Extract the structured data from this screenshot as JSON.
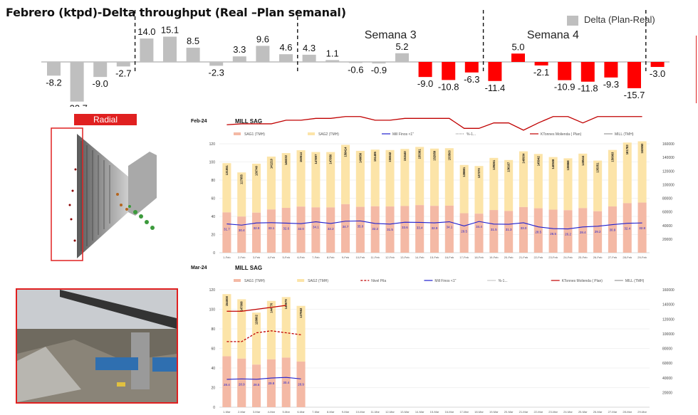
{
  "title": "Febrero (ktpd)-Delta throughput (Real –Plan semanal)",
  "legend_label": "Delta (Plan-Real)",
  "colors": {
    "positive": "#bfbfbf",
    "negative": "#ff0000",
    "accent": "#e02020"
  },
  "radial_label": "Radial",
  "chart_data": [
    {
      "type": "bar",
      "title": "Febrero (ktpd)-Delta throughput (Real –Plan semanal)",
      "legend": [
        "Delta (Plan-Real)"
      ],
      "values": [
        -8.2,
        -23.7,
        -9.0,
        -2.7,
        14.0,
        15.1,
        8.5,
        -2.3,
        3.3,
        9.6,
        4.6,
        4.3,
        1.1,
        -0.6,
        -0.9,
        5.2,
        -9.0,
        -10.8,
        -6.3,
        -11.4,
        5.0,
        -2.1,
        -10.9,
        -11.8,
        -9.3,
        -15.7,
        -3.0
      ],
      "red_start_index": 16,
      "week_labels": [
        "Semana 3",
        "Semana 4"
      ],
      "week_dividers_after_index": [
        3,
        10,
        18,
        25
      ]
    },
    {
      "type": "bar",
      "period": "Feb-24",
      "title": "MILL SAG",
      "legend": [
        "SAG1 (TMH)",
        "SAG2 (TMH)",
        "Mill Finos <1\"",
        "%-1...",
        "KTonnes Molienda ( Plan)",
        "MILL (TMH)"
      ],
      "categories": [
        "1-Feb",
        "2-Feb",
        "3-Feb",
        "4-Feb",
        "5-Feb",
        "6-Feb",
        "7-Feb",
        "8-Feb",
        "9-Feb",
        "10-Feb",
        "11-Feb",
        "12-Feb",
        "13-Feb",
        "14-Feb",
        "15-Feb",
        "16-Feb",
        "17-Feb",
        "18-Feb",
        "19-Feb",
        "20-Feb",
        "21-Feb",
        "22-Feb",
        "23-Feb",
        "24-Feb",
        "25-Feb",
        "26-Feb",
        "27-Feb",
        "28-Feb",
        "29-Feb"
      ],
      "mill_tmh": [
        131551,
        117955,
        130740,
        141210,
        146332,
        150514,
        147897,
        147850,
        158414,
        149656,
        151485,
        150842,
        152440,
        155381,
        152959,
        153503,
        128881,
        127370,
        139261,
        136167,
        148934,
        145042,
        140508,
        138668,
        145544,
        135351,
        150963,
        161783,
        163650
      ],
      "mill_finos": [
        31.7,
        30.4,
        32.8,
        33.1,
        32.6,
        32.0,
        34.1,
        32.2,
        34.7,
        35.0,
        32.2,
        31.5,
        33.6,
        33.4,
        32.9,
        34.1,
        29.5,
        34.4,
        31.5,
        31.3,
        33.0,
        28.5,
        26.5,
        26.2,
        28.4,
        29.2,
        30.9,
        32.4,
        32.8
      ],
      "ktonnes_plan": [
        141,
        142,
        142,
        142,
        146,
        146,
        148,
        148,
        150,
        150,
        146,
        146,
        148,
        148,
        148,
        148,
        137,
        137,
        143,
        143,
        135,
        143,
        150,
        150,
        143,
        150,
        150,
        150,
        150
      ],
      "y_left_range": [
        0,
        120
      ],
      "y_right_range": [
        0,
        160000
      ]
    },
    {
      "type": "bar",
      "period": "Mar-24",
      "title": "MILL SAG",
      "legend": [
        "SAG1 (TMH)",
        "SAG2 (TMH)",
        "Nivel Pila",
        "Mill Finos <1\"",
        "%-1...",
        "KTonnes Molienda ( Plan)",
        "MILL (TMH)"
      ],
      "categories": [
        "1-Mar",
        "2-Mar",
        "3-Mar",
        "4-Mar",
        "5-Mar",
        "6-Mar",
        "7-Mar",
        "8-Mar",
        "9-Mar",
        "10-Mar",
        "11-Mar",
        "12-Mar",
        "13-Mar",
        "14-Mar",
        "15-Mar",
        "16-Mar",
        "17-Mar",
        "18-Mar",
        "19-Mar",
        "20-Mar",
        "21-Mar",
        "22-Mar",
        "23-Mar",
        "24-Mar",
        "25-Mar",
        "26-Mar",
        "27-Mar",
        "28-Mar",
        "29-Mar"
      ],
      "mill_tmh": [
        154008,
        147008,
        128802,
        144770,
        149979,
        137982
      ],
      "mill_finos": [
        28.4,
        28.9,
        28.5,
        29.8,
        30.4,
        28.9
      ],
      "nivel_pila": [
        67,
        67,
        76,
        78,
        76,
        74
      ],
      "ktonnes_plan": [
        98,
        98,
        100,
        102,
        104
      ],
      "y_left_range": [
        0,
        120
      ],
      "y_right_range": [
        0,
        160000
      ]
    }
  ]
}
